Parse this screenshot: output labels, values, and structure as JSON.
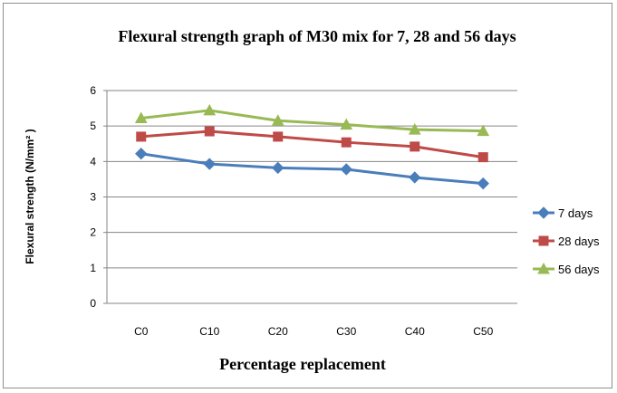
{
  "chart_data": {
    "type": "line",
    "title": "Flexural strength graph of M30 mix for 7, 28 and 56 days",
    "xlabel": "Percentage replacement",
    "ylabel": "Flexural strength (N/mm² )",
    "categories": [
      "C0",
      "C10",
      "C20",
      "C30",
      "C40",
      "C50"
    ],
    "ylim": [
      0,
      6
    ],
    "yticks": [
      "0",
      "1",
      "2",
      "3",
      "4",
      "5",
      "6"
    ],
    "grid": true,
    "legend_position": "right",
    "series": [
      {
        "name": "7 days",
        "color": "#4a7ebb",
        "marker": "diamond",
        "values": [
          4.22,
          3.93,
          3.82,
          3.78,
          3.55,
          3.38
        ]
      },
      {
        "name": "28 days",
        "color": "#be4b48",
        "marker": "square",
        "values": [
          4.7,
          4.85,
          4.7,
          4.54,
          4.42,
          4.12
        ]
      },
      {
        "name": "56 days",
        "color": "#98b954",
        "marker": "triangle",
        "values": [
          5.22,
          5.44,
          5.15,
          5.04,
          4.9,
          4.86
        ]
      }
    ]
  }
}
